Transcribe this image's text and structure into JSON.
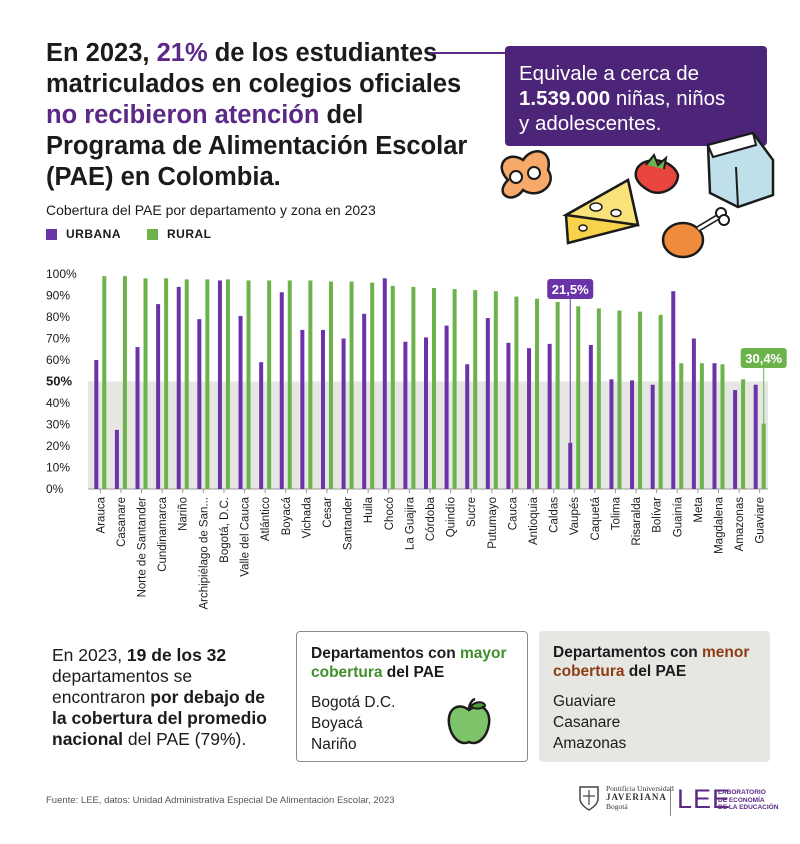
{
  "headline": {
    "part1": "En 2023, ",
    "highlight_pct": "21%",
    "part2": " de los estudiantes matriculados en colegios oficiales ",
    "highlight_phrase": "no recibieron atención",
    "part3": " del Programa de Alimentación Escolar (PAE) en Colombia."
  },
  "callout": {
    "line1": "Equivale a cerca de",
    "number": "1.539.000",
    "line2": " niñas, niños",
    "line3": "y adolescentes."
  },
  "subtitle": "Cobertura del PAE por departamento y zona en 2023",
  "legend": [
    {
      "label": "URBANA",
      "color": "#6a33a8"
    },
    {
      "label": "RURAL",
      "color": "#6db34c"
    }
  ],
  "colors": {
    "urban": "#6a33a8",
    "rural": "#6db34c",
    "band": "#e6e6e3",
    "accent_purple": "#5b2a86"
  },
  "icons": [
    "pretzel-icon",
    "cheese-icon",
    "strawberry-icon",
    "milk-carton-icon",
    "chicken-leg-icon",
    "apple-icon"
  ],
  "chart_data": {
    "type": "bar",
    "categories": [
      "Arauca",
      "Casanare",
      "Norte de Santander",
      "Cundinamarca",
      "Nariño",
      "Archipiélago de San...",
      "Bogotá, D.C.",
      "Valle del Cauca",
      "Atlántico",
      "Boyacá",
      "Vichada",
      "Cesar",
      "Santander",
      "Huila",
      "Chocó",
      "La Guajira",
      "Córdoba",
      "Quindío",
      "Sucre",
      "Putumayo",
      "Cauca",
      "Antioquia",
      "Caldas",
      "Vaupés",
      "Caquetá",
      "Tolima",
      "Risaralda",
      "Bolívar",
      "Guainía",
      "Meta",
      "Magdalena",
      "Amazonas",
      "Guaviare"
    ],
    "series": [
      {
        "name": "URBANA",
        "values": [
          60,
          27.5,
          66,
          86,
          94,
          79,
          97,
          80.5,
          59,
          91.5,
          74,
          74,
          70,
          81.5,
          98,
          68.5,
          70.5,
          76,
          58,
          79.5,
          68,
          65.5,
          67.5,
          21.5,
          67,
          51,
          50.5,
          48.5,
          92,
          70,
          58.5,
          46,
          48.5
        ]
      },
      {
        "name": "RURAL",
        "values": [
          99,
          99,
          98,
          98,
          97.5,
          97.5,
          97.5,
          97,
          97,
          97,
          97,
          96.5,
          96.5,
          96,
          94.5,
          94,
          93.5,
          93,
          92.5,
          92,
          89.5,
          88.5,
          87,
          85,
          84,
          83,
          82.5,
          81,
          58.5,
          58.5,
          58,
          51,
          30.4
        ]
      }
    ],
    "ylim": [
      0,
      100
    ],
    "yticks": [
      "0%",
      "10%",
      "20%",
      "30%",
      "40%",
      "50%",
      "60%",
      "70%",
      "80%",
      "90%",
      "100%"
    ],
    "reference": {
      "value": 50,
      "label": "50%"
    },
    "annotations": [
      {
        "label": "21,5%",
        "category": "Vaupés",
        "series": "URBANA",
        "value": 21.5
      },
      {
        "label": "30,4%",
        "category": "Guaviare",
        "series": "RURAL",
        "value": 30.4
      }
    ],
    "grid": false,
    "legend_position": "top-left"
  },
  "summary": {
    "t1": "En 2023, ",
    "b1": "19 de los 32",
    "t2": " departamentos se encontraron ",
    "b2": "por debajo de la cobertura del promedio nacional",
    "t3": " del PAE (79%)."
  },
  "high_box": {
    "title_a": "Departamentos con ",
    "title_b": "mayor cobertura",
    "title_c": "  del PAE",
    "items": [
      "Bogotá D.C.",
      "Boyacá",
      "Nariño"
    ]
  },
  "low_box": {
    "title_a": "Departamentos con ",
    "title_b": "menor cobertura",
    "title_c": " del PAE",
    "items": [
      "Guaviare",
      "Casanare",
      "Amazonas"
    ]
  },
  "source": "Fuente: LEE, datos: Unidad Administrativa Especial De Alimentación Escolar, 2023",
  "logos": {
    "univ_line1": "Pontificia Universidad",
    "univ_line2": "JAVERIANA",
    "univ_line3": "Bogotá",
    "lee": "LEE",
    "lab_line1": "LABORATORIO",
    "lab_line2": "DE ECONOMÍA",
    "lab_line3": "DE LA EDUCACIÓN"
  }
}
